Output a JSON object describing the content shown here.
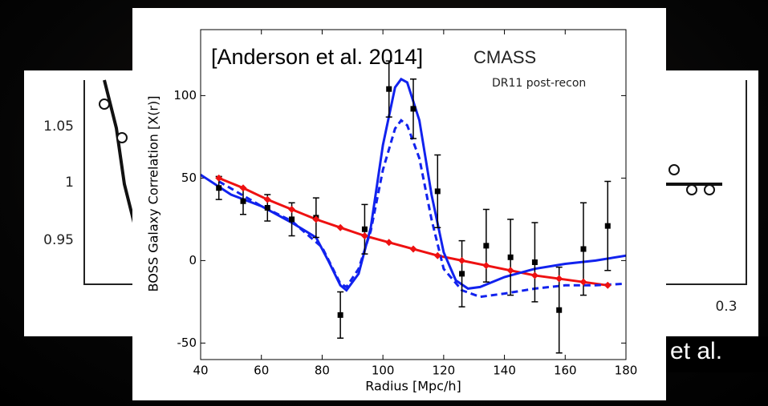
{
  "background": {
    "left_panel": {
      "yticks": [
        "1.05",
        "1",
        "0.95"
      ]
    },
    "right_panel": {
      "xtick": "0.3"
    },
    "caption_fragment": "n et al."
  },
  "chart_data": {
    "type": "line",
    "annotations": [
      "[Anderson et al. 2014]",
      "CMASS",
      "DR11 post-recon"
    ],
    "xlabel": "Radius [Mpc/h]",
    "ylabel": "BOSS Galaxy Correlation [X(r)]",
    "xlim": [
      40,
      180
    ],
    "ylim": [
      -60,
      140
    ],
    "xticks": [
      40,
      60,
      80,
      100,
      120,
      140,
      160,
      180
    ],
    "yticks": [
      -50,
      0,
      50,
      100
    ],
    "series": [
      {
        "color": "#000000",
        "marker": "square",
        "x": [
          46,
          54,
          62,
          70,
          78,
          86,
          94,
          102,
          110,
          118,
          126,
          134,
          142,
          150,
          158,
          166,
          174
        ],
        "values": [
          44,
          36,
          32,
          25,
          26,
          -33,
          19,
          104,
          92,
          42,
          -8,
          9,
          2,
          -1,
          -30,
          7,
          21
        ],
        "errors": [
          7,
          8,
          8,
          10,
          12,
          14,
          15,
          17,
          18,
          22,
          20,
          22,
          23,
          24,
          26,
          28,
          27
        ]
      },
      {
        "color": "#ee1111",
        "marker": "diamond",
        "style": "solid",
        "x": [
          46,
          54,
          62,
          70,
          78,
          86,
          94,
          102,
          110,
          118,
          126,
          134,
          142,
          150,
          158,
          166,
          174
        ],
        "values": [
          50,
          44,
          37,
          31,
          25,
          20,
          15,
          11,
          7,
          3,
          0,
          -3,
          -6,
          -9,
          -11,
          -13,
          -15
        ]
      },
      {
        "color": "#1122ee",
        "style": "solid",
        "x": [
          40,
          50,
          60,
          70,
          78,
          82,
          86,
          88,
          92,
          96,
          100,
          104,
          106,
          108,
          112,
          116,
          120,
          124,
          128,
          132,
          140,
          150,
          160,
          170,
          180
        ],
        "values": [
          52,
          40,
          33,
          23,
          14,
          0,
          -15,
          -18,
          -8,
          20,
          70,
          105,
          110,
          108,
          85,
          40,
          5,
          -12,
          -17,
          -16,
          -10,
          -5,
          -2,
          0,
          3
        ]
      },
      {
        "color": "#1122ee",
        "style": "dashed",
        "x": [
          46,
          60,
          70,
          80,
          86,
          88,
          92,
          96,
          100,
          104,
          106,
          108,
          112,
          116,
          120,
          126,
          132,
          140,
          150,
          160,
          170,
          180
        ],
        "values": [
          48,
          33,
          24,
          8,
          -14,
          -16,
          -5,
          18,
          55,
          80,
          85,
          82,
          62,
          25,
          -5,
          -18,
          -22,
          -20,
          -17,
          -15,
          -15,
          -14
        ]
      }
    ]
  }
}
